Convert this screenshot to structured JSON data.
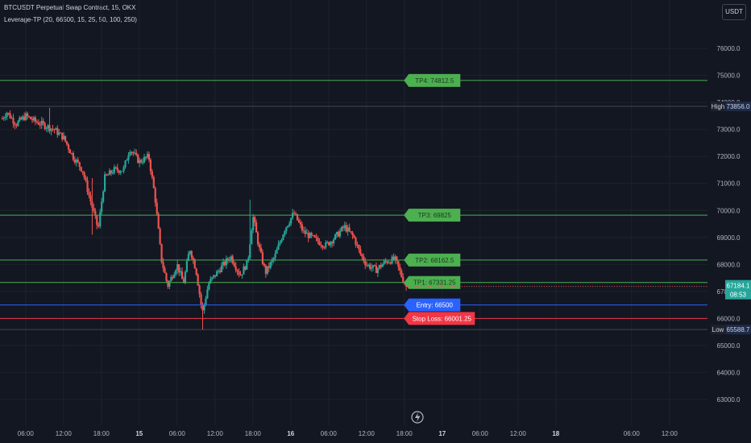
{
  "header": {
    "title": "BTCUSDT Perpetual Swap Contract, 15, OKX",
    "indicator": "Leverage-TP (20, 66500, 15, 25, 50, 100, 250)"
  },
  "currency_button": "USDT",
  "colors": {
    "background": "#131722",
    "grid": "#1e222d",
    "up": "#26a69a",
    "down": "#ef5350",
    "tp": "#4caf50",
    "entry": "#2962ff",
    "stop": "#f23645",
    "axis_text": "#b2b5be"
  },
  "chart_data": {
    "type": "candlestick",
    "symbol": "BTCUSDT Perpetual Swap Contract",
    "interval": "15",
    "exchange": "OKX",
    "ylim": [
      62700,
      76600
    ],
    "y_ticks": [
      63000,
      64000,
      65000,
      66000,
      67000,
      68000,
      69000,
      70000,
      71000,
      72000,
      73000,
      74000,
      75000,
      76000
    ],
    "y_tick_labels": [
      "63000.0",
      "64000.0",
      "65000.0",
      "66000.0",
      "67000.0",
      "68000.0",
      "69000.0",
      "70000.0",
      "71000.0",
      "72000.0",
      "73000.0",
      "74000.0",
      "75000.0",
      "76000.0"
    ],
    "x_tick_labels": [
      "06:00",
      "12:00",
      "18:00",
      "15",
      "06:00",
      "12:00",
      "18:00",
      "16",
      "06:00",
      "12:00",
      "18:00",
      "17",
      "06:00",
      "12:00",
      "18",
      "06:00",
      "12:00"
    ],
    "x_tick_hours": [
      6,
      12,
      18,
      24,
      30,
      36,
      42,
      48,
      54,
      60,
      66,
      72,
      78,
      84,
      90,
      102,
      108
    ],
    "x_range_hours": [
      2.2,
      113
    ],
    "last_candle_hour": 66.3,
    "price_path": [
      [
        2.3,
        73400
      ],
      [
        3.0,
        73650
      ],
      [
        4.5,
        73200
      ],
      [
        6,
        73500
      ],
      [
        7.5,
        73300
      ],
      [
        9,
        73150
      ],
      [
        10.5,
        73000
      ],
      [
        12,
        72700
      ],
      [
        13.5,
        72000
      ],
      [
        15,
        71500
      ],
      [
        16,
        70600
      ],
      [
        17.5,
        69300
      ],
      [
        18.5,
        71200
      ],
      [
        20,
        71500
      ],
      [
        21.5,
        71500
      ],
      [
        22.5,
        72300
      ],
      [
        24,
        71800
      ],
      [
        25.5,
        72000
      ],
      [
        26.5,
        70500
      ],
      [
        27.5,
        68200
      ],
      [
        28.5,
        67200
      ],
      [
        30,
        68000
      ],
      [
        31,
        67300
      ],
      [
        32,
        68600
      ],
      [
        33,
        67800
      ],
      [
        34,
        66200
      ],
      [
        35,
        67300
      ],
      [
        37,
        67900
      ],
      [
        38.5,
        68300
      ],
      [
        40,
        67600
      ],
      [
        41.2,
        68100
      ],
      [
        42,
        69800
      ],
      [
        43,
        68600
      ],
      [
        44,
        67700
      ],
      [
        45.5,
        68300
      ],
      [
        47,
        69300
      ],
      [
        48.5,
        69900
      ],
      [
        50,
        69200
      ],
      [
        52,
        68900
      ],
      [
        53.5,
        68700
      ],
      [
        55,
        69000
      ],
      [
        56.5,
        69400
      ],
      [
        58,
        69000
      ],
      [
        59,
        68400
      ],
      [
        60,
        68000
      ],
      [
        61.5,
        67800
      ],
      [
        63,
        68100
      ],
      [
        64.5,
        68200
      ],
      [
        65.5,
        67600
      ],
      [
        66.3,
        67184
      ]
    ],
    "candle_extremes": [
      {
        "hour": 9.8,
        "high": 73800,
        "low": 73300
      },
      {
        "hour": 16.5,
        "high": 71200,
        "low": 69100
      },
      {
        "hour": 34.1,
        "high": 66600,
        "low": 65590
      },
      {
        "hour": 41.6,
        "high": 70400,
        "low": 68800
      }
    ],
    "levels": [
      {
        "label": "TP4",
        "text": "TP4: 74812.5",
        "value": 74812.5,
        "kind": "tp"
      },
      {
        "label": "TP3",
        "text": "TP3: 69825",
        "value": 69825,
        "kind": "tp"
      },
      {
        "label": "TP2",
        "text": "TP2: 68162.5",
        "value": 68162.5,
        "kind": "tp"
      },
      {
        "label": "TP1",
        "text": "TP1: 67331.25",
        "value": 67331.25,
        "kind": "tp"
      },
      {
        "label": "Entry",
        "text": "Entry: 66500",
        "value": 66500,
        "kind": "entry"
      },
      {
        "label": "Stop Loss",
        "text": "Stop Loss: 66001.25",
        "value": 66001.25,
        "kind": "stop"
      }
    ],
    "high": {
      "label": "High",
      "value_text": "73856.0",
      "value": 73856
    },
    "low": {
      "label": "Low",
      "value_text": "65588.7",
      "value": 65588.7
    },
    "last_price": {
      "value_text": "67184.1",
      "countdown": "08:53",
      "value": 67184.1
    },
    "levels_start_hour": 66.7
  }
}
